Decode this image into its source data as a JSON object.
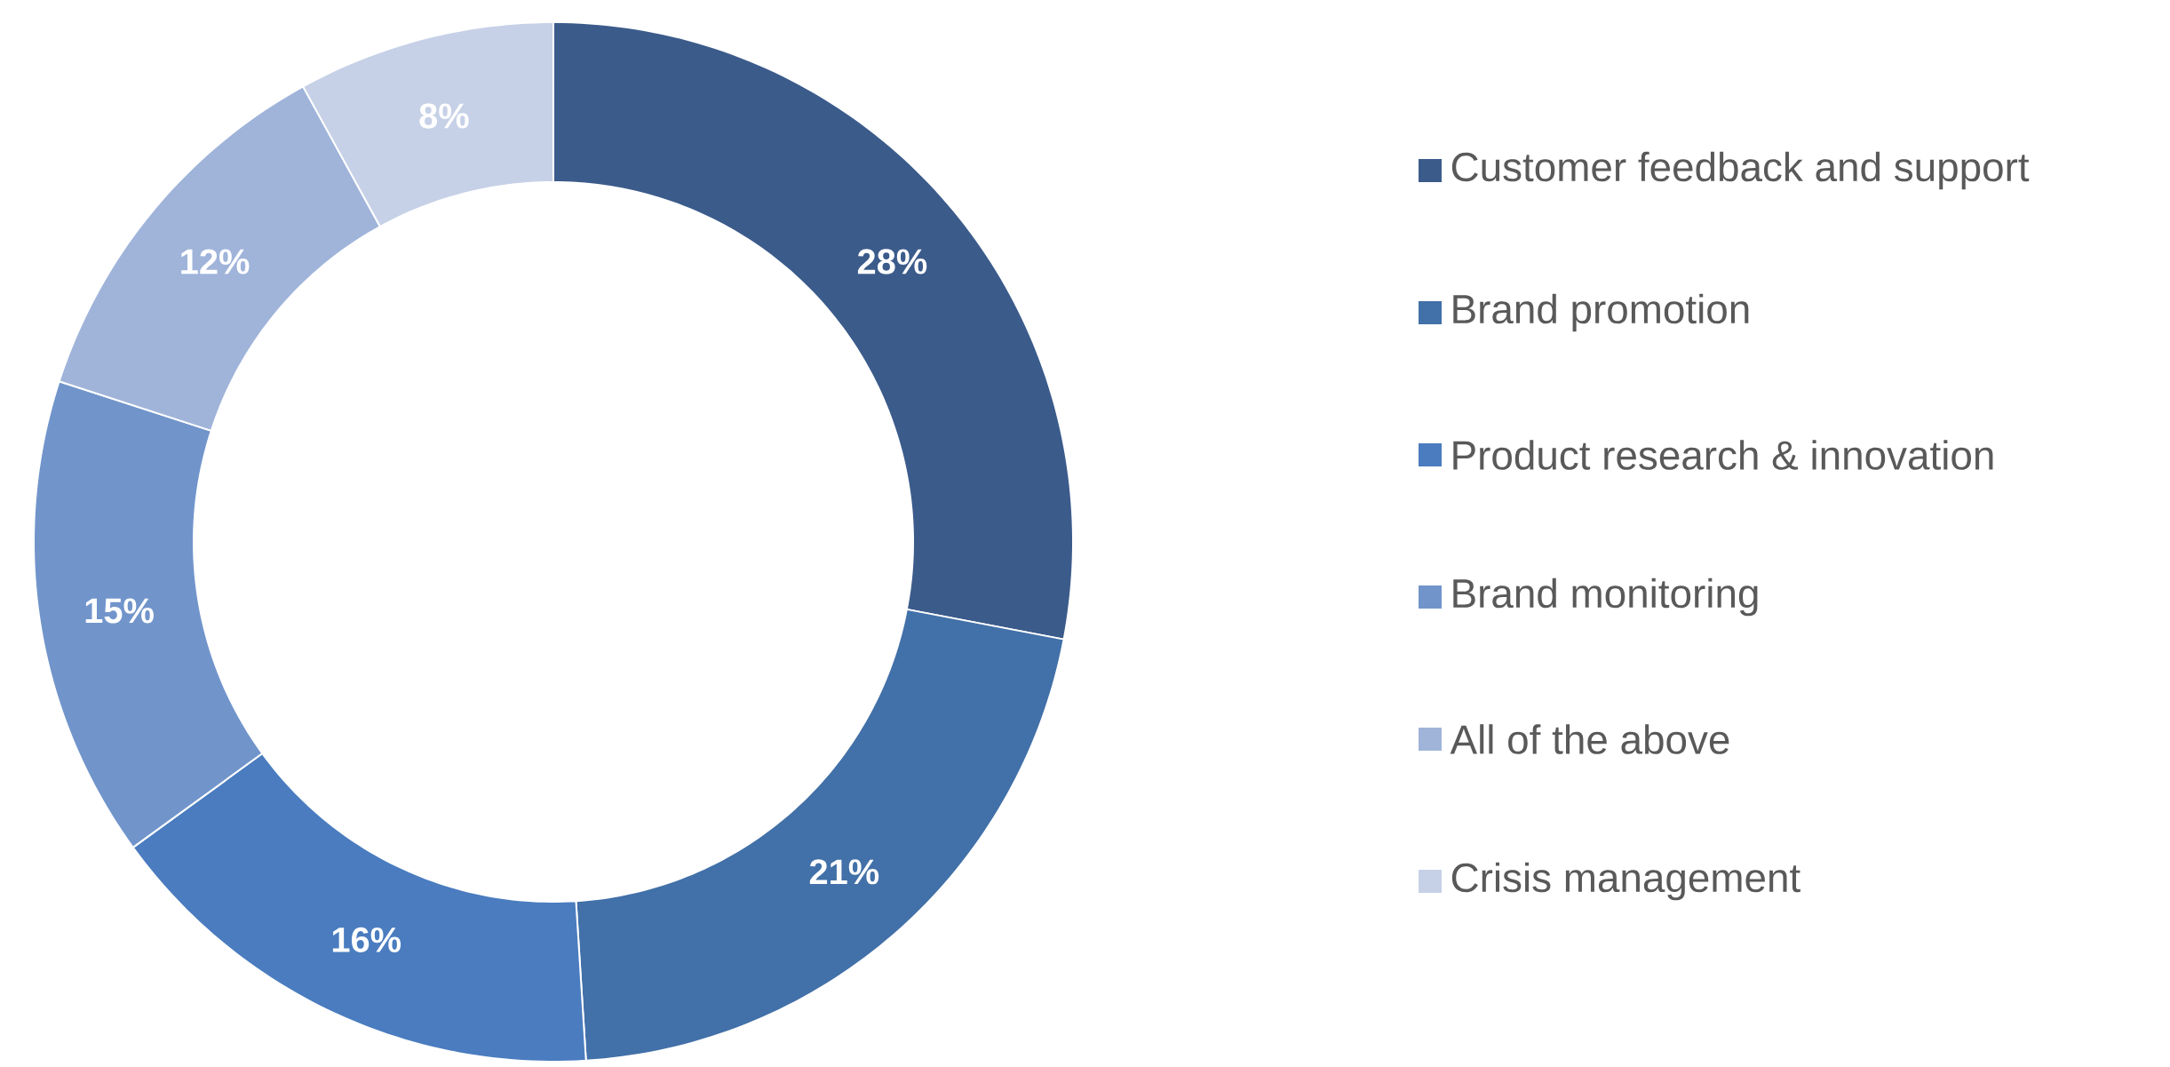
{
  "chart_data": {
    "type": "donut",
    "categories": [
      "Customer feedback and support",
      "Brand promotion",
      "Product research & innovation",
      "Brand monitoring",
      "All of the above",
      "Crisis management"
    ],
    "values": [
      28,
      21,
      16,
      15,
      12,
      8
    ],
    "colors": [
      "#3b5b8b",
      "#4270a8",
      "#4a7cbf",
      "#7195cb",
      "#a0b4da",
      "#c6d1e7"
    ],
    "value_labels": [
      "28%",
      "21%",
      "16%",
      "15%",
      "12%",
      "8%"
    ],
    "legend": "right"
  }
}
